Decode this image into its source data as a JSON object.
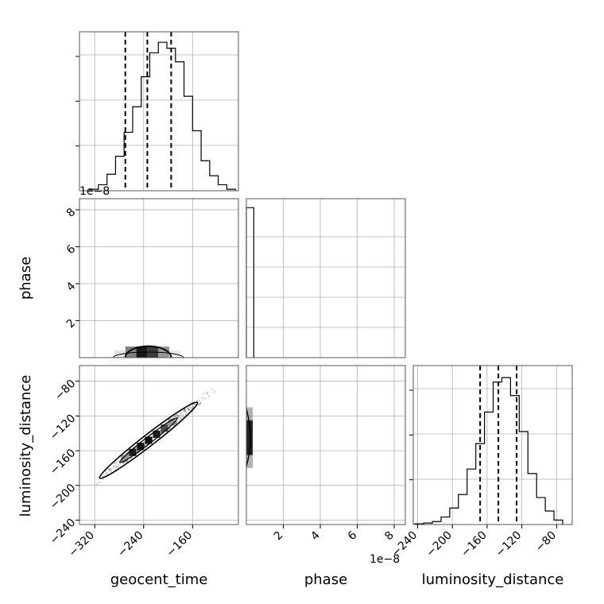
{
  "chart_data": [
    {
      "type": "histogram",
      "panel": "geocent_time",
      "bins": [
        -328,
        -314,
        -300,
        -286,
        -272,
        -258,
        -244,
        -230,
        -216,
        -202,
        -188,
        -174,
        -160,
        -146,
        -132,
        -118,
        -104,
        -90
      ],
      "counts": [
        0.01,
        0.04,
        0.11,
        0.23,
        0.39,
        0.56,
        0.76,
        0.92,
        0.99,
        0.95,
        0.86,
        0.63,
        0.4,
        0.2,
        0.1,
        0.04,
        0.01
      ],
      "quantile_lines": [
        -270,
        -234,
        -195
      ],
      "xlim": [
        -345,
        -85
      ],
      "ylim": [
        0,
        1.06
      ]
    },
    {
      "type": "heatmap",
      "panel": "geocent_time vs phase",
      "x_ticks": [
        -320,
        -240,
        -160
      ],
      "y_ticks": [
        2,
        4,
        6,
        8
      ],
      "y_offset_label": "1e−8",
      "xlim": [
        -345,
        -85
      ],
      "ylim": [
        0,
        8.6
      ],
      "contours": [
        {
          "x": [
            -290,
            -175
          ],
          "y_top": 0.3,
          "level": "outer"
        },
        {
          "x": [
            -270,
            -195
          ],
          "y_top": 0.62,
          "level": "inner"
        }
      ],
      "density_cells": [
        {
          "x": -243,
          "y": 0.3,
          "w": 18,
          "density": 1.0
        },
        {
          "x": -225,
          "y": 0.3,
          "w": 18,
          "density": 0.85
        },
        {
          "x": -261,
          "y": 0.3,
          "w": 18,
          "density": 0.55
        },
        {
          "x": -207,
          "y": 0.3,
          "w": 18,
          "density": 0.45
        },
        {
          "x": -279,
          "y": 0.2,
          "w": 18,
          "density": 0.12
        },
        {
          "x": -189,
          "y": 0.2,
          "w": 18,
          "density": 0.1
        }
      ]
    },
    {
      "type": "histogram",
      "panel": "phase",
      "bins": [
        0,
        0.2,
        0.4
      ],
      "counts": [
        1.0,
        0.0
      ],
      "xlim": [
        0,
        8.6
      ],
      "ylim": [
        0,
        1.06
      ]
    },
    {
      "type": "scatter",
      "panel": "geocent_time vs luminosity_distance",
      "x_ticks": [
        -320,
        -240,
        -160
      ],
      "y_ticks": [
        -80,
        -120,
        -160,
        -200,
        -240
      ],
      "xlim": [
        -345,
        -85
      ],
      "ylim": [
        -245,
        -62
      ],
      "trend": {
        "slope": 0.545,
        "intercept": -21.7,
        "x_range": [
          -335,
          -100
        ],
        "spread": 5
      },
      "inner_contour": {
        "center": [
          -232,
          -148
        ],
        "half_length": 47,
        "half_width": 4.2
      },
      "outer_contour": {
        "center": [
          -232,
          -148
        ],
        "half_length": 80,
        "half_width": 7.5
      },
      "dense_points": [
        {
          "x": -258,
          "y": -162,
          "density": 0.95
        },
        {
          "x": -245,
          "y": -155,
          "density": 1.0
        },
        {
          "x": -232,
          "y": -148,
          "density": 1.0
        },
        {
          "x": -219,
          "y": -141,
          "density": 0.95
        },
        {
          "x": -206,
          "y": -134,
          "density": 0.75
        },
        {
          "x": -194,
          "y": -127,
          "density": 0.45
        },
        {
          "x": -271,
          "y": -169,
          "density": 0.45
        }
      ]
    },
    {
      "type": "heatmap",
      "panel": "phase vs luminosity_distance",
      "x_ticks": [
        2,
        4,
        6,
        8
      ],
      "x_offset_label": "1e−8",
      "xlim": [
        0,
        8.6
      ],
      "ylim": [
        -245,
        -62
      ],
      "band": {
        "x": 0.2,
        "y_range": [
          -180,
          -110
        ]
      }
    },
    {
      "type": "histogram",
      "panel": "luminosity_distance",
      "bins": [
        -243,
        -233,
        -223,
        -213,
        -203,
        -193,
        -183,
        -173,
        -163,
        -153,
        -143,
        -133,
        -123,
        -113,
        -103,
        -93,
        -83,
        -73
      ],
      "counts": [
        0.005,
        0.01,
        0.02,
        0.05,
        0.11,
        0.2,
        0.37,
        0.54,
        0.75,
        0.95,
        0.98,
        0.86,
        0.62,
        0.34,
        0.18,
        0.09,
        0.03
      ],
      "quantile_lines": [
        -168,
        -147,
        -126
      ],
      "x_ticks": [
        -240,
        -200,
        -160,
        -120,
        -80
      ],
      "xlim": [
        -245,
        -62
      ],
      "ylim": [
        0,
        1.06
      ]
    }
  ],
  "labels": {
    "x_geocent": "geocent_time",
    "x_phase": "phase",
    "x_lumdist": "luminosity_distance",
    "y_phase": "phase",
    "y_lumdist": "luminosity_distance",
    "offset_top": "1e−8",
    "offset_bottom": "1e−8"
  }
}
